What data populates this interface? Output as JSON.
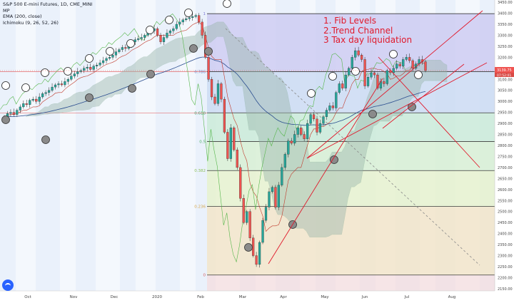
{
  "legend": {
    "symbol": "S&P 500 E-mini Futures, 1D, CME_MINI",
    "line2": "MP",
    "line3": "EMA (200, close)",
    "line4": "Ichimoku (9, 26, 52, 26)"
  },
  "annotation": {
    "lines": [
      "1. Fib Levels",
      "2.Trend Channel",
      "3 Tax day liquidation"
    ],
    "color": "#e0192b"
  },
  "colors": {
    "up": "#26a69a",
    "down": "#ef5350",
    "price_tag": "#ef5350",
    "fib_line": "#313131"
  },
  "chart_data": {
    "type": "candlestick",
    "title": "S&P 500 E-mini Futures, 1D, CME_MINI",
    "ylim": [
      2140,
      3460
    ],
    "yticks": [
      2150,
      2200,
      2250,
      2300,
      2350,
      2400,
      2450,
      2500,
      2550,
      2600,
      2650,
      2700,
      2750,
      2800,
      2850,
      2900,
      2950,
      3000,
      3050,
      3100,
      3150,
      3200,
      3250,
      3300,
      3350,
      3400,
      3450
    ],
    "xlabels": [
      "Oct",
      "Nov",
      "Dec",
      "2020",
      "Feb",
      "Mar",
      "Apr",
      "May",
      "Jun",
      "Jul",
      "Aug"
    ],
    "last_price": {
      "value": "3139.75",
      "countdown": "07:52:01"
    },
    "fib_levels": [
      {
        "label": "1",
        "value": 3398,
        "color": "#7b78d6"
      },
      {
        "label": "0.786",
        "value": 3135,
        "color": "#5b8ad6"
      },
      {
        "label": "0.618",
        "value": 2948,
        "color": "#3aa66a"
      },
      {
        "label": "0.5",
        "value": 2818,
        "color": "#52b56a"
      },
      {
        "label": "0.382",
        "value": 2686,
        "color": "#8dc05a"
      },
      {
        "label": "0.236",
        "value": 2523,
        "color": "#d8a84b"
      },
      {
        "label": "0",
        "value": 2212,
        "color": "#d66060"
      }
    ],
    "candles_close": [
      2930,
      2945,
      2950,
      2940,
      2960,
      2975,
      2990,
      2985,
      3005,
      3010,
      3000,
      3020,
      3035,
      3040,
      3050,
      3065,
      3075,
      3080,
      3075,
      3090,
      3100,
      3115,
      3125,
      3135,
      3140,
      3150,
      3155,
      3145,
      3160,
      3165,
      3175,
      3185,
      3195,
      3200,
      3210,
      3225,
      3235,
      3245,
      3240,
      3255,
      3270,
      3280,
      3285,
      3290,
      3300,
      3310,
      3320,
      3330,
      3300,
      3270,
      3290,
      3310,
      3320,
      3330,
      3350,
      3360,
      3370,
      3375,
      3380,
      3385,
      3390,
      3360,
      3300,
      3200,
      3100,
      3020,
      2990,
      3080,
      3010,
      2860,
      2740,
      2880,
      2780,
      2700,
      2560,
      2450,
      2500,
      2380,
      2300,
      2260,
      2360,
      2460,
      2520,
      2590,
      2610,
      2520,
      2620,
      2700,
      2760,
      2820,
      2810,
      2850,
      2880,
      2850,
      2830,
      2900,
      2940,
      2920,
      2860,
      2900,
      2930,
      2960,
      2980,
      2970,
      3040,
      3080,
      3060,
      3120,
      3150,
      3200,
      3230,
      3210,
      3190,
      3070,
      3110,
      3130,
      3120,
      3060,
      3090,
      3080,
      3140,
      3130,
      3150,
      3170,
      3160,
      3190,
      3200,
      3185,
      3150,
      3170,
      3190,
      3180,
      3139.75
    ]
  }
}
